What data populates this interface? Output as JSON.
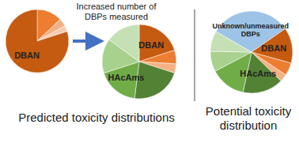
{
  "chart_data": [
    {
      "type": "pie",
      "categories": [
        null,
        null,
        null,
        "DBAN"
      ],
      "values": [
        13,
        4,
        3,
        80
      ],
      "colors": [
        "#ed7d31",
        "#f4b183",
        "#f8cbad",
        "#c55a11"
      ]
    },
    {
      "type": "pie",
      "categories": [
        "DBAN",
        null,
        null,
        null,
        "HAcAms",
        null,
        null
      ],
      "values": [
        20,
        6,
        4,
        22,
        18,
        15,
        15
      ],
      "colors": [
        "#c55a11",
        "#ed7d31",
        "#f4b183",
        "#548235",
        "#70ad47",
        "#a9d18e",
        "#c5e0b4"
      ]
    },
    {
      "type": "pie",
      "categories": [
        "Unknown/unmeasured DBPs",
        "DBAN",
        null,
        null,
        "HAcAms",
        null,
        null,
        null
      ],
      "values": [
        32,
        14,
        5,
        3,
        16,
        14,
        8,
        8
      ],
      "colors": [
        "#9dc3e6",
        "#c55a11",
        "#ed7d31",
        "#f4b183",
        "#548235",
        "#70ad47",
        "#a9d18e",
        "#c5e0b4"
      ]
    }
  ],
  "arrow_label": "Increased number of DBPs measured",
  "captions": [
    "Predicted toxicity distributions",
    "Potential toxicity distribution"
  ]
}
